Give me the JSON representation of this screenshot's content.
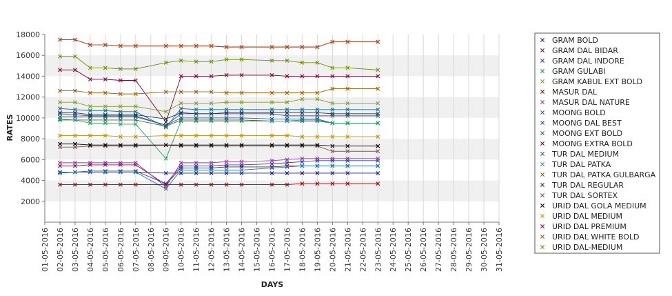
{
  "chart_data": {
    "type": "line",
    "xlabel": "DAYS",
    "ylabel": "RATES",
    "ylim": [
      0,
      18000
    ],
    "y_ticks": [
      2000,
      4000,
      6000,
      8000,
      10000,
      12000,
      14000,
      16000,
      18000
    ],
    "grid": true,
    "legend_position": "right",
    "categories": [
      "01-05-2016",
      "02-05-2016",
      "03-05-2016",
      "04-05-2016",
      "05-05-2016",
      "06-05-2016",
      "07-05-2016",
      "08-05-2016",
      "09-05-2016",
      "10-05-2016",
      "11-05-2016",
      "12-05-2016",
      "13-05-2016",
      "14-05-2016",
      "15-05-2016",
      "16-05-2016",
      "17-05-2016",
      "18-05-2016",
      "19-05-2016",
      "20-05-2016",
      "21-05-2016",
      "22-05-2016",
      "23-05-2016",
      "24-05-2016",
      "25-05-2016",
      "26-05-2016",
      "27-05-2016",
      "28-05-2016",
      "29-05-2016",
      "30-05-2016",
      "31-05-2016"
    ],
    "series": [
      {
        "name": "GRAM BOLD",
        "color": "#1a1a80",
        "values": [
          null,
          4800,
          4800,
          4800,
          4800,
          4800,
          4800,
          null,
          4700,
          4700,
          4700,
          4700,
          4700,
          4700,
          null,
          4700,
          4700,
          4700,
          4700,
          4700,
          4700,
          null,
          4700,
          null,
          null,
          null,
          null,
          null,
          null,
          null,
          null
        ]
      },
      {
        "name": "GRAM DAL BIDAR",
        "color": "#80104a",
        "values": [
          null,
          5400,
          5400,
          5500,
          5500,
          5500,
          5500,
          null,
          3600,
          5200,
          5200,
          5200,
          5300,
          5300,
          null,
          5300,
          5400,
          5400,
          5400,
          5400,
          5400,
          null,
          5400,
          null,
          null,
          null,
          null,
          null,
          null,
          null,
          null
        ]
      },
      {
        "name": "GRAM DAL INDORE",
        "color": "#2a40c0",
        "values": [
          null,
          4800,
          4800,
          4900,
          4900,
          4900,
          4900,
          null,
          3700,
          5400,
          5400,
          5400,
          5500,
          5500,
          null,
          5600,
          5700,
          5800,
          5900,
          5900,
          5900,
          null,
          5900,
          null,
          null,
          null,
          null,
          null,
          null,
          null,
          null
        ]
      },
      {
        "name": "GRAM GULABI",
        "color": "#1a8090",
        "values": [
          null,
          4700,
          4800,
          4800,
          4800,
          4800,
          4800,
          null,
          3200,
          5000,
          5000,
          5000,
          5000,
          5000,
          null,
          5200,
          5300,
          5400,
          5400,
          5400,
          5400,
          null,
          5400,
          null,
          null,
          null,
          null,
          null,
          null,
          null,
          null
        ]
      },
      {
        "name": "GRAM KABUL EXT BOLD",
        "color": "#80a020",
        "values": [
          null,
          11500,
          11500,
          11100,
          11100,
          11100,
          11100,
          null,
          10600,
          11400,
          11400,
          11400,
          11500,
          11500,
          null,
          11500,
          11500,
          11800,
          11800,
          11400,
          11400,
          null,
          11400,
          null,
          null,
          null,
          null,
          null,
          null,
          null,
          null
        ]
      },
      {
        "name": "MASUR DAL",
        "color": "#a00000",
        "values": [
          null,
          3600,
          3600,
          3600,
          3600,
          3600,
          3600,
          null,
          3600,
          3600,
          3600,
          3600,
          3600,
          3600,
          null,
          3600,
          3600,
          3700,
          3700,
          3700,
          3700,
          null,
          3700,
          null,
          null,
          null,
          null,
          null,
          null,
          null,
          null
        ]
      },
      {
        "name": "MASUR DAL NATURE",
        "color": "#a030a0",
        "values": [
          null,
          5700,
          5700,
          5700,
          5700,
          5700,
          5700,
          null,
          3400,
          5700,
          5700,
          5700,
          5800,
          5800,
          null,
          5900,
          6000,
          6100,
          6100,
          6100,
          6100,
          null,
          6100,
          null,
          null,
          null,
          null,
          null,
          null,
          null,
          null
        ]
      },
      {
        "name": "MOONG BOLD",
        "color": "#505090",
        "values": [
          null,
          10400,
          10300,
          10200,
          10200,
          10200,
          10200,
          null,
          9300,
          10400,
          10400,
          10400,
          10400,
          10400,
          null,
          10400,
          10200,
          10200,
          10200,
          10200,
          10200,
          null,
          10200,
          null,
          null,
          null,
          null,
          null,
          null,
          null,
          null
        ]
      },
      {
        "name": "MOONG DAL BEST",
        "color": "#2050c0",
        "values": [
          null,
          10100,
          10100,
          10100,
          10100,
          10100,
          10100,
          null,
          9300,
          10000,
          10000,
          10000,
          10000,
          10000,
          null,
          9900,
          9900,
          9900,
          9900,
          9500,
          9500,
          null,
          9500,
          null,
          null,
          null,
          null,
          null,
          null,
          null,
          null
        ]
      },
      {
        "name": "MOONG EXT BOLD",
        "color": "#307030",
        "values": [
          null,
          9800,
          9800,
          9800,
          9800,
          9800,
          9800,
          null,
          9200,
          9800,
          9800,
          9800,
          9800,
          9800,
          null,
          9700,
          9700,
          9700,
          9700,
          9500,
          9500,
          null,
          9500,
          null,
          null,
          null,
          null,
          null,
          null,
          null,
          null
        ]
      },
      {
        "name": "MOONG EXTRA BOLD",
        "color": "#800030",
        "values": [
          null,
          14600,
          14600,
          13700,
          13700,
          13600,
          13600,
          null,
          9600,
          14000,
          14000,
          14000,
          14100,
          14100,
          null,
          14100,
          14000,
          14000,
          14000,
          14000,
          14000,
          null,
          14000,
          null,
          null,
          null,
          null,
          null,
          null,
          null,
          null
        ]
      },
      {
        "name": "TUR DAL MEDIUM",
        "color": "#107090",
        "values": [
          null,
          10900,
          10800,
          10700,
          10700,
          10600,
          10600,
          null,
          9100,
          10900,
          10800,
          10800,
          10800,
          10800,
          null,
          10800,
          10800,
          10800,
          10800,
          10800,
          10800,
          null,
          10800,
          null,
          null,
          null,
          null,
          null,
          null,
          null,
          null
        ]
      },
      {
        "name": "TUR DAL PATKA",
        "color": "#20a060",
        "values": [
          null,
          9900,
          9800,
          9500,
          9500,
          9400,
          9400,
          null,
          6100,
          9700,
          9700,
          9700,
          9700,
          9700,
          null,
          9700,
          9700,
          9800,
          9800,
          9500,
          9500,
          null,
          9500,
          null,
          null,
          null,
          null,
          null,
          null,
          null,
          null
        ]
      },
      {
        "name": "TUR DAL PATKA GULBARGA",
        "color": "#a06000",
        "values": [
          null,
          12600,
          12600,
          12400,
          12400,
          12300,
          12300,
          null,
          12500,
          12500,
          12500,
          12500,
          12400,
          12400,
          null,
          12400,
          12400,
          12400,
          12400,
          12800,
          12800,
          null,
          12800,
          null,
          null,
          null,
          null,
          null,
          null,
          null,
          null
        ]
      },
      {
        "name": "TUR DAL REGULAR",
        "color": "#104050",
        "values": [
          null,
          10500,
          10500,
          10300,
          10300,
          10300,
          10300,
          null,
          9900,
          10500,
          10400,
          10400,
          10500,
          10500,
          null,
          10500,
          10500,
          10500,
          10500,
          10400,
          10400,
          null,
          10400,
          null,
          null,
          null,
          null,
          null,
          null,
          null,
          null
        ]
      },
      {
        "name": "TUR DAL SORTEX",
        "color": "#905050",
        "values": [
          null,
          7200,
          7200,
          7300,
          7300,
          7300,
          7300,
          null,
          7400,
          7300,
          7300,
          7300,
          7300,
          7300,
          null,
          7300,
          7300,
          7300,
          7300,
          6800,
          6800,
          null,
          6800,
          null,
          null,
          null,
          null,
          null,
          null,
          null,
          null
        ]
      },
      {
        "name": "URID DAL GOLA MEDIUM",
        "color": "#000000",
        "values": [
          null,
          7500,
          7500,
          7400,
          7400,
          7400,
          7400,
          null,
          7400,
          7400,
          7400,
          7400,
          7400,
          7400,
          null,
          7400,
          7400,
          7400,
          7400,
          7300,
          7300,
          null,
          7300,
          null,
          null,
          null,
          null,
          null,
          null,
          null,
          null
        ]
      },
      {
        "name": "URID DAL MEDIUM",
        "color": "#c09000",
        "values": [
          null,
          8300,
          8300,
          8300,
          8300,
          8200,
          8200,
          null,
          8300,
          8300,
          8300,
          8300,
          8300,
          8300,
          null,
          8300,
          8300,
          8200,
          8200,
          8200,
          8200,
          null,
          8200,
          null,
          null,
          null,
          null,
          null,
          null,
          null,
          null
        ]
      },
      {
        "name": "URID DAL PREMIUM",
        "color": "#c00020",
        "values": [
          null,
          17500,
          17500,
          17000,
          17000,
          16900,
          16900,
          null,
          16900,
          16900,
          16900,
          16900,
          16800,
          16800,
          null,
          16800,
          16800,
          16800,
          16800,
          17300,
          17300,
          null,
          17300,
          null,
          null,
          null,
          null,
          null,
          null,
          null,
          null
        ]
      },
      {
        "name": "URID DAL WHITE BOLD",
        "color": "#b05020",
        "values": [
          null,
          17500,
          17500,
          17000,
          17000,
          16900,
          16900,
          null,
          16900,
          16900,
          16900,
          16900,
          16800,
          16800,
          null,
          16800,
          16800,
          16800,
          16800,
          17300,
          17300,
          null,
          17300,
          null,
          null,
          null,
          null,
          null,
          null,
          null,
          null
        ]
      },
      {
        "name": "URID DAL-MEDIUM",
        "color": "#709000",
        "values": [
          null,
          15900,
          15900,
          14800,
          14800,
          14700,
          14700,
          null,
          15300,
          15500,
          15400,
          15400,
          15600,
          15600,
          null,
          15500,
          15500,
          15300,
          15300,
          14800,
          14800,
          null,
          14600,
          null,
          null,
          null,
          null,
          null,
          null,
          null,
          null
        ]
      }
    ]
  }
}
